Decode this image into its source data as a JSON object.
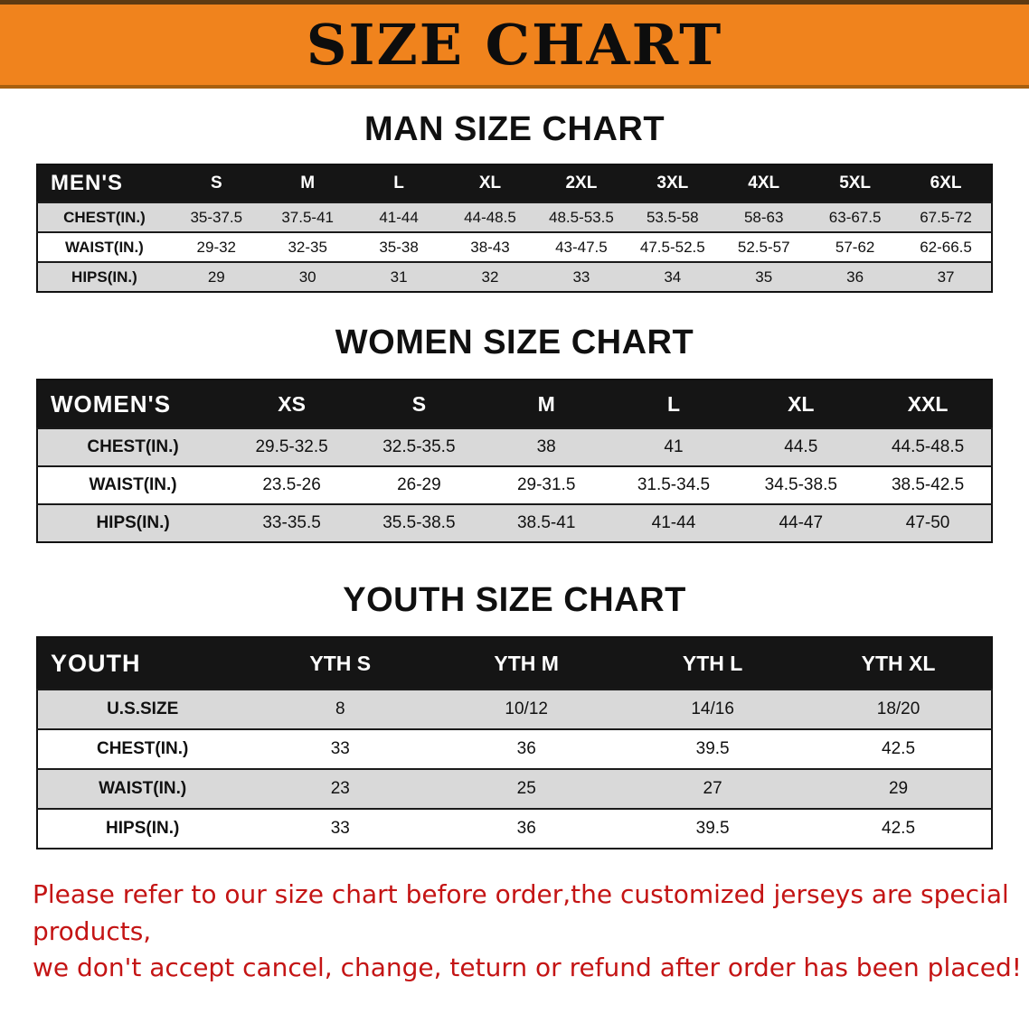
{
  "banner": {
    "title": "SIZE CHART"
  },
  "colors": {
    "banner_bg": "#f0831d",
    "header_bg": "#151515",
    "row_shade": "#d9d9d9",
    "notice_red": "#c41414"
  },
  "sections": [
    {
      "id": "men",
      "heading": "MAN SIZE CHART",
      "table": {
        "header": [
          "MEN'S",
          "S",
          "M",
          "L",
          "XL",
          "2XL",
          "3XL",
          "4XL",
          "5XL",
          "6XL"
        ],
        "rows": [
          [
            "CHEST(IN.)",
            "35-37.5",
            "37.5-41",
            "41-44",
            "44-48.5",
            "48.5-53.5",
            "53.5-58",
            "58-63",
            "63-67.5",
            "67.5-72"
          ],
          [
            "WAIST(IN.)",
            "29-32",
            "32-35",
            "35-38",
            "38-43",
            "43-47.5",
            "47.5-52.5",
            "52.5-57",
            "57-62",
            "62-66.5"
          ],
          [
            "HIPS(IN.)",
            "29",
            "30",
            "31",
            "32",
            "33",
            "34",
            "35",
            "36",
            "37"
          ]
        ]
      }
    },
    {
      "id": "women",
      "heading": "WOMEN SIZE CHART",
      "table": {
        "header": [
          "WOMEN'S",
          "XS",
          "S",
          "M",
          "L",
          "XL",
          "XXL"
        ],
        "rows": [
          [
            "CHEST(IN.)",
            "29.5-32.5",
            "32.5-35.5",
            "38",
            "41",
            "44.5",
            "44.5-48.5"
          ],
          [
            "WAIST(IN.)",
            "23.5-26",
            "26-29",
            "29-31.5",
            "31.5-34.5",
            "34.5-38.5",
            "38.5-42.5"
          ],
          [
            "HIPS(IN.)",
            "33-35.5",
            "35.5-38.5",
            "38.5-41",
            "41-44",
            "44-47",
            "47-50"
          ]
        ]
      }
    },
    {
      "id": "youth",
      "heading": "YOUTH SIZE CHART",
      "table": {
        "header": [
          "YOUTH",
          "YTH S",
          "YTH M",
          "YTH L",
          "YTH XL"
        ],
        "rows": [
          [
            "U.S.SIZE",
            "8",
            "10/12",
            "14/16",
            "18/20"
          ],
          [
            "CHEST(IN.)",
            "33",
            "36",
            "39.5",
            "42.5"
          ],
          [
            "WAIST(IN.)",
            "23",
            "25",
            "27",
            "29"
          ],
          [
            "HIPS(IN.)",
            "33",
            "36",
            "39.5",
            "42.5"
          ]
        ]
      }
    }
  ],
  "footer": {
    "line1": "Please refer to our size chart before order,the customized jerseys are special products,",
    "line2": "we don't accept cancel, change, teturn or refund after order has been placed!"
  }
}
